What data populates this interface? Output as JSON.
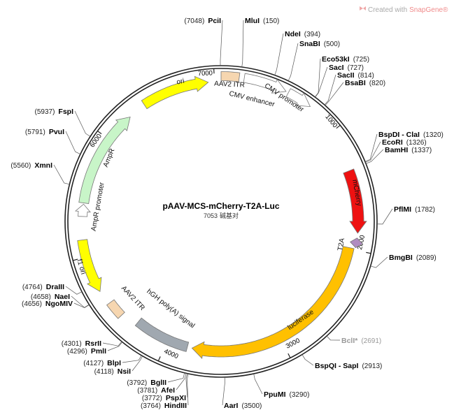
{
  "watermark": {
    "prefix": "Created with",
    "brand": "SnapGene®"
  },
  "title": "pAAV-MCS-mCherry-T2A-Luc",
  "length": 7053,
  "length_unit": "碱基对",
  "ticks": [
    1000,
    2000,
    3000,
    4000,
    5000,
    6000,
    7000
  ],
  "sites": [
    {
      "name": "PciI",
      "position": {
        "value": 7048,
        "label": "(7048)"
      }
    },
    {
      "name": "MluI",
      "position": {
        "value": 150,
        "label": "(150)"
      }
    },
    {
      "name": "NdeI",
      "position": {
        "value": 394,
        "label": "(394)"
      }
    },
    {
      "name": "SnaBI",
      "position": {
        "value": 500,
        "label": "(500)"
      }
    },
    {
      "name": "Eco53kI",
      "position": {
        "value": 725,
        "label": "(725)"
      }
    },
    {
      "name": "SacI",
      "position": {
        "value": 727,
        "label": "(727)"
      }
    },
    {
      "name": "SacII",
      "position": {
        "value": 814,
        "label": "(814)"
      }
    },
    {
      "name": "BsaBI",
      "position": {
        "value": 820,
        "label": "(820)"
      }
    },
    {
      "name": "BspDI - ClaI",
      "position": {
        "value": 1320,
        "label": "(1320)"
      }
    },
    {
      "name": "EcoRI",
      "position": {
        "value": 1326,
        "label": "(1326)"
      }
    },
    {
      "name": "BamHI",
      "position": {
        "value": 1337,
        "label": "(1337)"
      }
    },
    {
      "name": "PflMI",
      "position": {
        "value": 1782,
        "label": "(1782)"
      }
    },
    {
      "name": "BmgBI",
      "position": {
        "value": 2089,
        "label": "(2089)"
      }
    },
    {
      "name": "BclI*",
      "position": {
        "value": 2691,
        "label": "(2691)"
      },
      "color": "#999999"
    },
    {
      "name": "BspQI - SapI",
      "position": {
        "value": 2913,
        "label": "(2913)"
      }
    },
    {
      "name": "PpuMI",
      "position": {
        "value": 3290,
        "label": "(3290)"
      }
    },
    {
      "name": "AarI",
      "position": {
        "value": 3500,
        "label": "(3500)"
      }
    },
    {
      "name": "HindIII",
      "position": {
        "value": 3764,
        "label": "(3764)"
      }
    },
    {
      "name": "PspXI",
      "position": {
        "value": 3772,
        "label": "(3772)"
      }
    },
    {
      "name": "AfeI",
      "position": {
        "value": 3781,
        "label": "(3781)"
      }
    },
    {
      "name": "BglII",
      "position": {
        "value": 3792,
        "label": "(3792)"
      }
    },
    {
      "name": "NsiI",
      "position": {
        "value": 4118,
        "label": "(4118)"
      }
    },
    {
      "name": "BlpI",
      "position": {
        "value": 4127,
        "label": "(4127)"
      }
    },
    {
      "name": "PmlI",
      "position": {
        "value": 4296,
        "label": "(4296)"
      }
    },
    {
      "name": "RsrII",
      "position": {
        "value": 4301,
        "label": "(4301)"
      }
    },
    {
      "name": "NgoMIV",
      "position": {
        "value": 4656,
        "label": "(4656)"
      }
    },
    {
      "name": "NaeI",
      "position": {
        "value": 4658,
        "label": "(4658)"
      }
    },
    {
      "name": "DraIII",
      "position": {
        "value": 4764,
        "label": "(4764)"
      }
    },
    {
      "name": "XmnI",
      "position": {
        "value": 5560,
        "label": "(5560)"
      }
    },
    {
      "name": "PvuI",
      "position": {
        "value": 5791,
        "label": "(5791)"
      }
    },
    {
      "name": "FspI",
      "position": {
        "value": 5937,
        "label": "(5937)"
      }
    }
  ],
  "features": [
    {
      "label": "ori"
    },
    {
      "label": "AAV2 ITR"
    },
    {
      "label": "CMV enhancer"
    },
    {
      "label": "CMV promoter"
    },
    {
      "label": "mCherry"
    },
    {
      "label": "T2A"
    },
    {
      "label": "luciferase"
    },
    {
      "label": "hGH poly(A) signal"
    },
    {
      "label": "AAV2 ITR"
    },
    {
      "label": "f1 ori"
    },
    {
      "label": "AmpR promoter"
    },
    {
      "label": "AmpR"
    }
  ]
}
